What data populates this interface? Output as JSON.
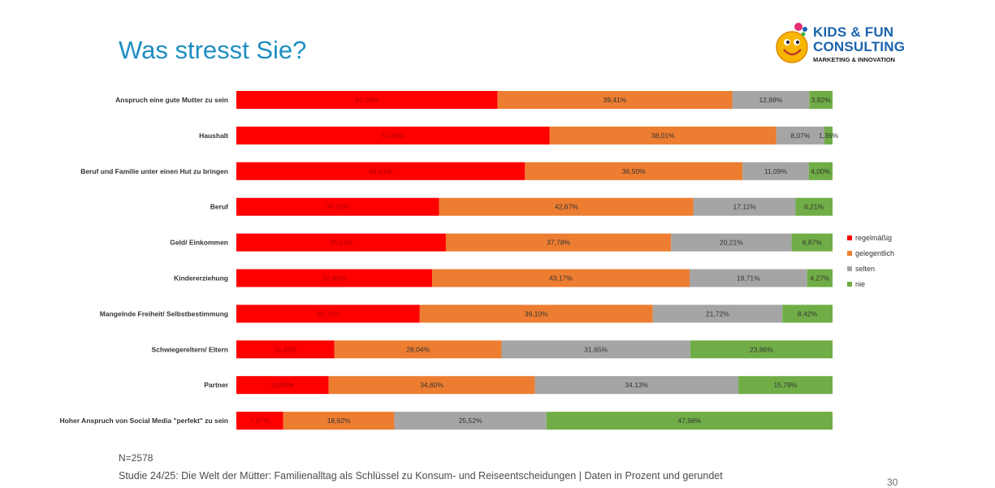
{
  "slide": {
    "title": "Was stresst Sie?",
    "sample_note": "N=2578",
    "footer": "Studie 24/25: Die Welt der Mütter: Familienalltag als Schlüssel zu Konsum- und Reiseentscheidungen | Daten in Prozent und gerundet",
    "page_number": "30"
  },
  "logo": {
    "line1": "KIDS & FUN",
    "line2": "CONSULTING",
    "line3": "MARKETING & INNOVATION"
  },
  "chart_data": {
    "type": "bar",
    "orientation": "horizontal",
    "stacked": "100%",
    "title": "Was stresst Sie?",
    "xlabel": "",
    "ylabel": "",
    "xlim": [
      0,
      100
    ],
    "grid": false,
    "legend_position": "right",
    "categories": [
      "Anspruch eine gute Mutter zu sein",
      "Haushalt",
      "Beruf und Familie unter einen Hut zu bringen",
      "Beruf",
      "Geld/ Einkommen",
      "Kindererziehung",
      "Mangelnde Freiheit/ Selbstbestimmung",
      "Schwiegereltern/ Eltern",
      "Partner",
      "Hoher Anspruch von Social Media \"perfekt\" zu sein"
    ],
    "series": [
      {
        "name": "regelmäßig",
        "color": "#ff0000",
        "values": [
          43.79,
          52.56,
          48.41,
          34.02,
          35.14,
          32.85,
          30.76,
          16.45,
          15.48,
          7.87
        ],
        "labels": [
          "43,79%",
          "52,56%",
          "48,41%",
          "34,02%",
          "35,14%",
          "32,85%",
          "30,76%",
          "16,45%",
          "15,48%",
          "7,87%"
        ]
      },
      {
        "name": "gelegentlich",
        "color": "#ed7d31",
        "values": [
          39.41,
          38.01,
          36.5,
          42.67,
          37.78,
          43.17,
          39.1,
          28.04,
          34.6,
          18.62
        ],
        "labels": [
          "39,41%",
          "38,01%",
          "36,50%",
          "42,67%",
          "37,78%",
          "43,17%",
          "39,10%",
          "28,04%",
          "34,60%",
          "18,62%"
        ]
      },
      {
        "name": "selten",
        "color": "#a5a5a5",
        "values": [
          12.88,
          8.07,
          11.09,
          17.11,
          20.21,
          19.71,
          21.72,
          31.65,
          34.13,
          25.52
        ],
        "labels": [
          "12,88%",
          "8,07%",
          "11,09%",
          "17,11%",
          "20,21%",
          "19,71%",
          "21,72%",
          "31,65%",
          "34,13%",
          "25,52%"
        ]
      },
      {
        "name": "nie",
        "color": "#70ad47",
        "values": [
          3.92,
          1.36,
          4.0,
          6.21,
          6.87,
          4.27,
          8.42,
          23.86,
          15.79,
          47.98
        ],
        "labels": [
          "3,92%",
          "1,36%",
          "4,00%",
          "6,21%",
          "6,87%",
          "4,27%",
          "8,42%",
          "23,86%",
          "15,79%",
          "47,98%"
        ]
      }
    ]
  }
}
